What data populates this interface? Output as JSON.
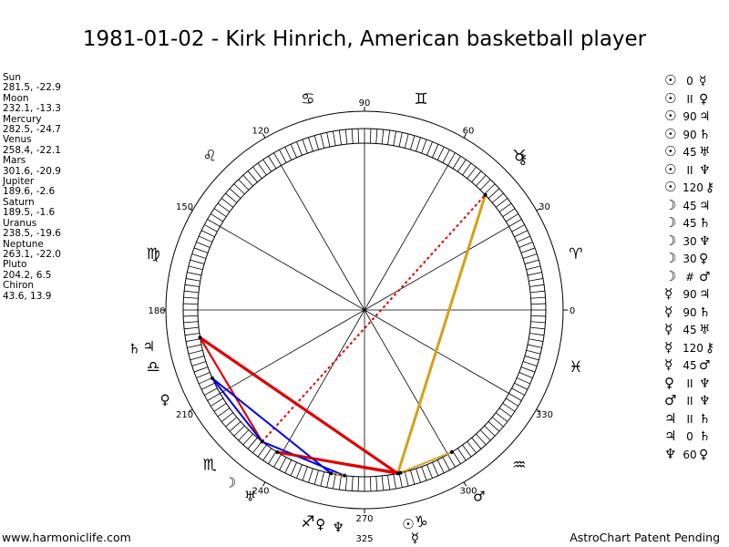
{
  "title": "1981-01-02 - Kirk Hinrich, American basketball player",
  "footer": {
    "left": "www.harmoniclife.com",
    "right": "AstroChart Patent Pending"
  },
  "positions": [
    {
      "name": "Sun",
      "value": "281.5, -22.9"
    },
    {
      "name": "Moon",
      "value": "232.1, -13.3"
    },
    {
      "name": "Mercury",
      "value": "282.5, -24.7"
    },
    {
      "name": "Venus",
      "value": "258.4, -22.1"
    },
    {
      "name": "Mars",
      "value": "301.6, -20.9"
    },
    {
      "name": "Jupiter",
      "value": "189.6, -2.6"
    },
    {
      "name": "Saturn",
      "value": "189.5, -1.6"
    },
    {
      "name": "Uranus",
      "value": "238.5, -19.6"
    },
    {
      "name": "Neptune",
      "value": "263.1, -22.0"
    },
    {
      "name": "Pluto",
      "value": "204.2, 6.5"
    },
    {
      "name": "Chiron",
      "value": "43.6, 13.9"
    }
  ],
  "aspects": [
    {
      "p1": "☉",
      "angle": "0",
      "p2": "☿"
    },
    {
      "p1": "☉",
      "angle": "II",
      "p2": "♀"
    },
    {
      "p1": "☉",
      "angle": "90",
      "p2": "♃"
    },
    {
      "p1": "☉",
      "angle": "90",
      "p2": "♄"
    },
    {
      "p1": "☉",
      "angle": "45",
      "p2": "♅"
    },
    {
      "p1": "☉",
      "angle": "II",
      "p2": "♆"
    },
    {
      "p1": "☉",
      "angle": "120",
      "p2": "⚷"
    },
    {
      "p1": "☽",
      "angle": "45",
      "p2": "♃"
    },
    {
      "p1": "☽",
      "angle": "45",
      "p2": "♄"
    },
    {
      "p1": "☽",
      "angle": "30",
      "p2": "♆"
    },
    {
      "p1": "☽",
      "angle": "30",
      "p2": "♀"
    },
    {
      "p1": "☽",
      "angle": "#",
      "p2": "♂"
    },
    {
      "p1": "☿",
      "angle": "90",
      "p2": "♃"
    },
    {
      "p1": "☿",
      "angle": "90",
      "p2": "♄"
    },
    {
      "p1": "☿",
      "angle": "45",
      "p2": "♅"
    },
    {
      "p1": "☿",
      "angle": "120",
      "p2": "⚷"
    },
    {
      "p1": "☿",
      "angle": "45",
      "p2": "♂"
    },
    {
      "p1": "♀",
      "angle": "II",
      "p2": "♆"
    },
    {
      "p1": "♂",
      "angle": "II",
      "p2": "♆"
    },
    {
      "p1": "♃",
      "angle": "II",
      "p2": "♄"
    },
    {
      "p1": "♃",
      "angle": "0",
      "p2": "♄"
    },
    {
      "p1": "♆",
      "angle": "60",
      "p2": "♀"
    }
  ],
  "wheel": {
    "degree_labels": [
      {
        "deg": 0,
        "text": "0"
      },
      {
        "deg": 30,
        "text": "30"
      },
      {
        "deg": 60,
        "text": "60"
      },
      {
        "deg": 90,
        "text": "90"
      },
      {
        "deg": 120,
        "text": "120"
      },
      {
        "deg": 150,
        "text": "150"
      },
      {
        "deg": 180,
        "text": "180"
      },
      {
        "deg": 210,
        "text": "210"
      },
      {
        "deg": 240,
        "text": "240"
      },
      {
        "deg": 270,
        "text": "270"
      },
      {
        "deg": 300,
        "text": "300"
      },
      {
        "deg": 330,
        "text": "330"
      }
    ],
    "extra_label": "325",
    "signs": [
      "♈",
      "♉",
      "♊",
      "♋",
      "♌",
      "♍",
      "♎",
      "♏",
      "♐",
      "♑",
      "♒",
      "♓"
    ],
    "planets": [
      {
        "name": "sun",
        "glyph": "☉",
        "lon": 281.5
      },
      {
        "name": "moon",
        "glyph": "☽",
        "lon": 232.1
      },
      {
        "name": "mercury",
        "glyph": "☿",
        "lon": 282.5
      },
      {
        "name": "venus",
        "glyph": "♀",
        "lon": 258.4
      },
      {
        "name": "mars",
        "glyph": "♂",
        "lon": 301.6
      },
      {
        "name": "jupiter",
        "glyph": "♃",
        "lon": 189.6
      },
      {
        "name": "saturn",
        "glyph": "♄",
        "lon": 189.5
      },
      {
        "name": "uranus",
        "glyph": "♅",
        "lon": 238.5
      },
      {
        "name": "neptune",
        "glyph": "♆",
        "lon": 263.1
      },
      {
        "name": "pluto",
        "glyph": "♀",
        "lon": 204.2
      },
      {
        "name": "chiron",
        "glyph": "⚷",
        "lon": 43.6
      }
    ],
    "aspect_lines": [
      {
        "a": "sun",
        "b": "chiron",
        "color": "#d4a017",
        "style": "solid",
        "width": 3
      },
      {
        "a": "moon",
        "b": "chiron",
        "color": "#e00000",
        "style": "dotted",
        "width": 2
      },
      {
        "a": "sun",
        "b": "jupiter",
        "color": "#e00000",
        "style": "solid",
        "width": 3
      },
      {
        "a": "sun",
        "b": "saturn",
        "color": "#e00000",
        "style": "solid",
        "width": 3
      },
      {
        "a": "sun",
        "b": "uranus",
        "color": "#e00000",
        "style": "solid",
        "width": 3
      },
      {
        "a": "moon",
        "b": "jupiter",
        "color": "#e00000",
        "style": "solid",
        "width": 2
      },
      {
        "a": "moon",
        "b": "saturn",
        "color": "#e00000",
        "style": "solid",
        "width": 2
      },
      {
        "a": "moon",
        "b": "pluto",
        "color": "#0000e0",
        "style": "solid",
        "width": 2
      },
      {
        "a": "moon",
        "b": "neptune",
        "color": "#0000e0",
        "style": "solid",
        "width": 2
      },
      {
        "a": "venus",
        "b": "pluto",
        "color": "#0000e0",
        "style": "solid",
        "width": 2
      },
      {
        "a": "mercury",
        "b": "mars",
        "color": "#d4a017",
        "style": "dotted",
        "width": 2
      },
      {
        "a": "sun",
        "b": "mars",
        "color": "#d4a017",
        "style": "dotted",
        "width": 2
      },
      {
        "a": "neptune",
        "b": "venus",
        "color": "#d4a017",
        "style": "dotted",
        "width": 3
      },
      {
        "a": "uranus",
        "b": "mercury",
        "color": "#e00000",
        "style": "solid",
        "width": 2
      }
    ]
  }
}
